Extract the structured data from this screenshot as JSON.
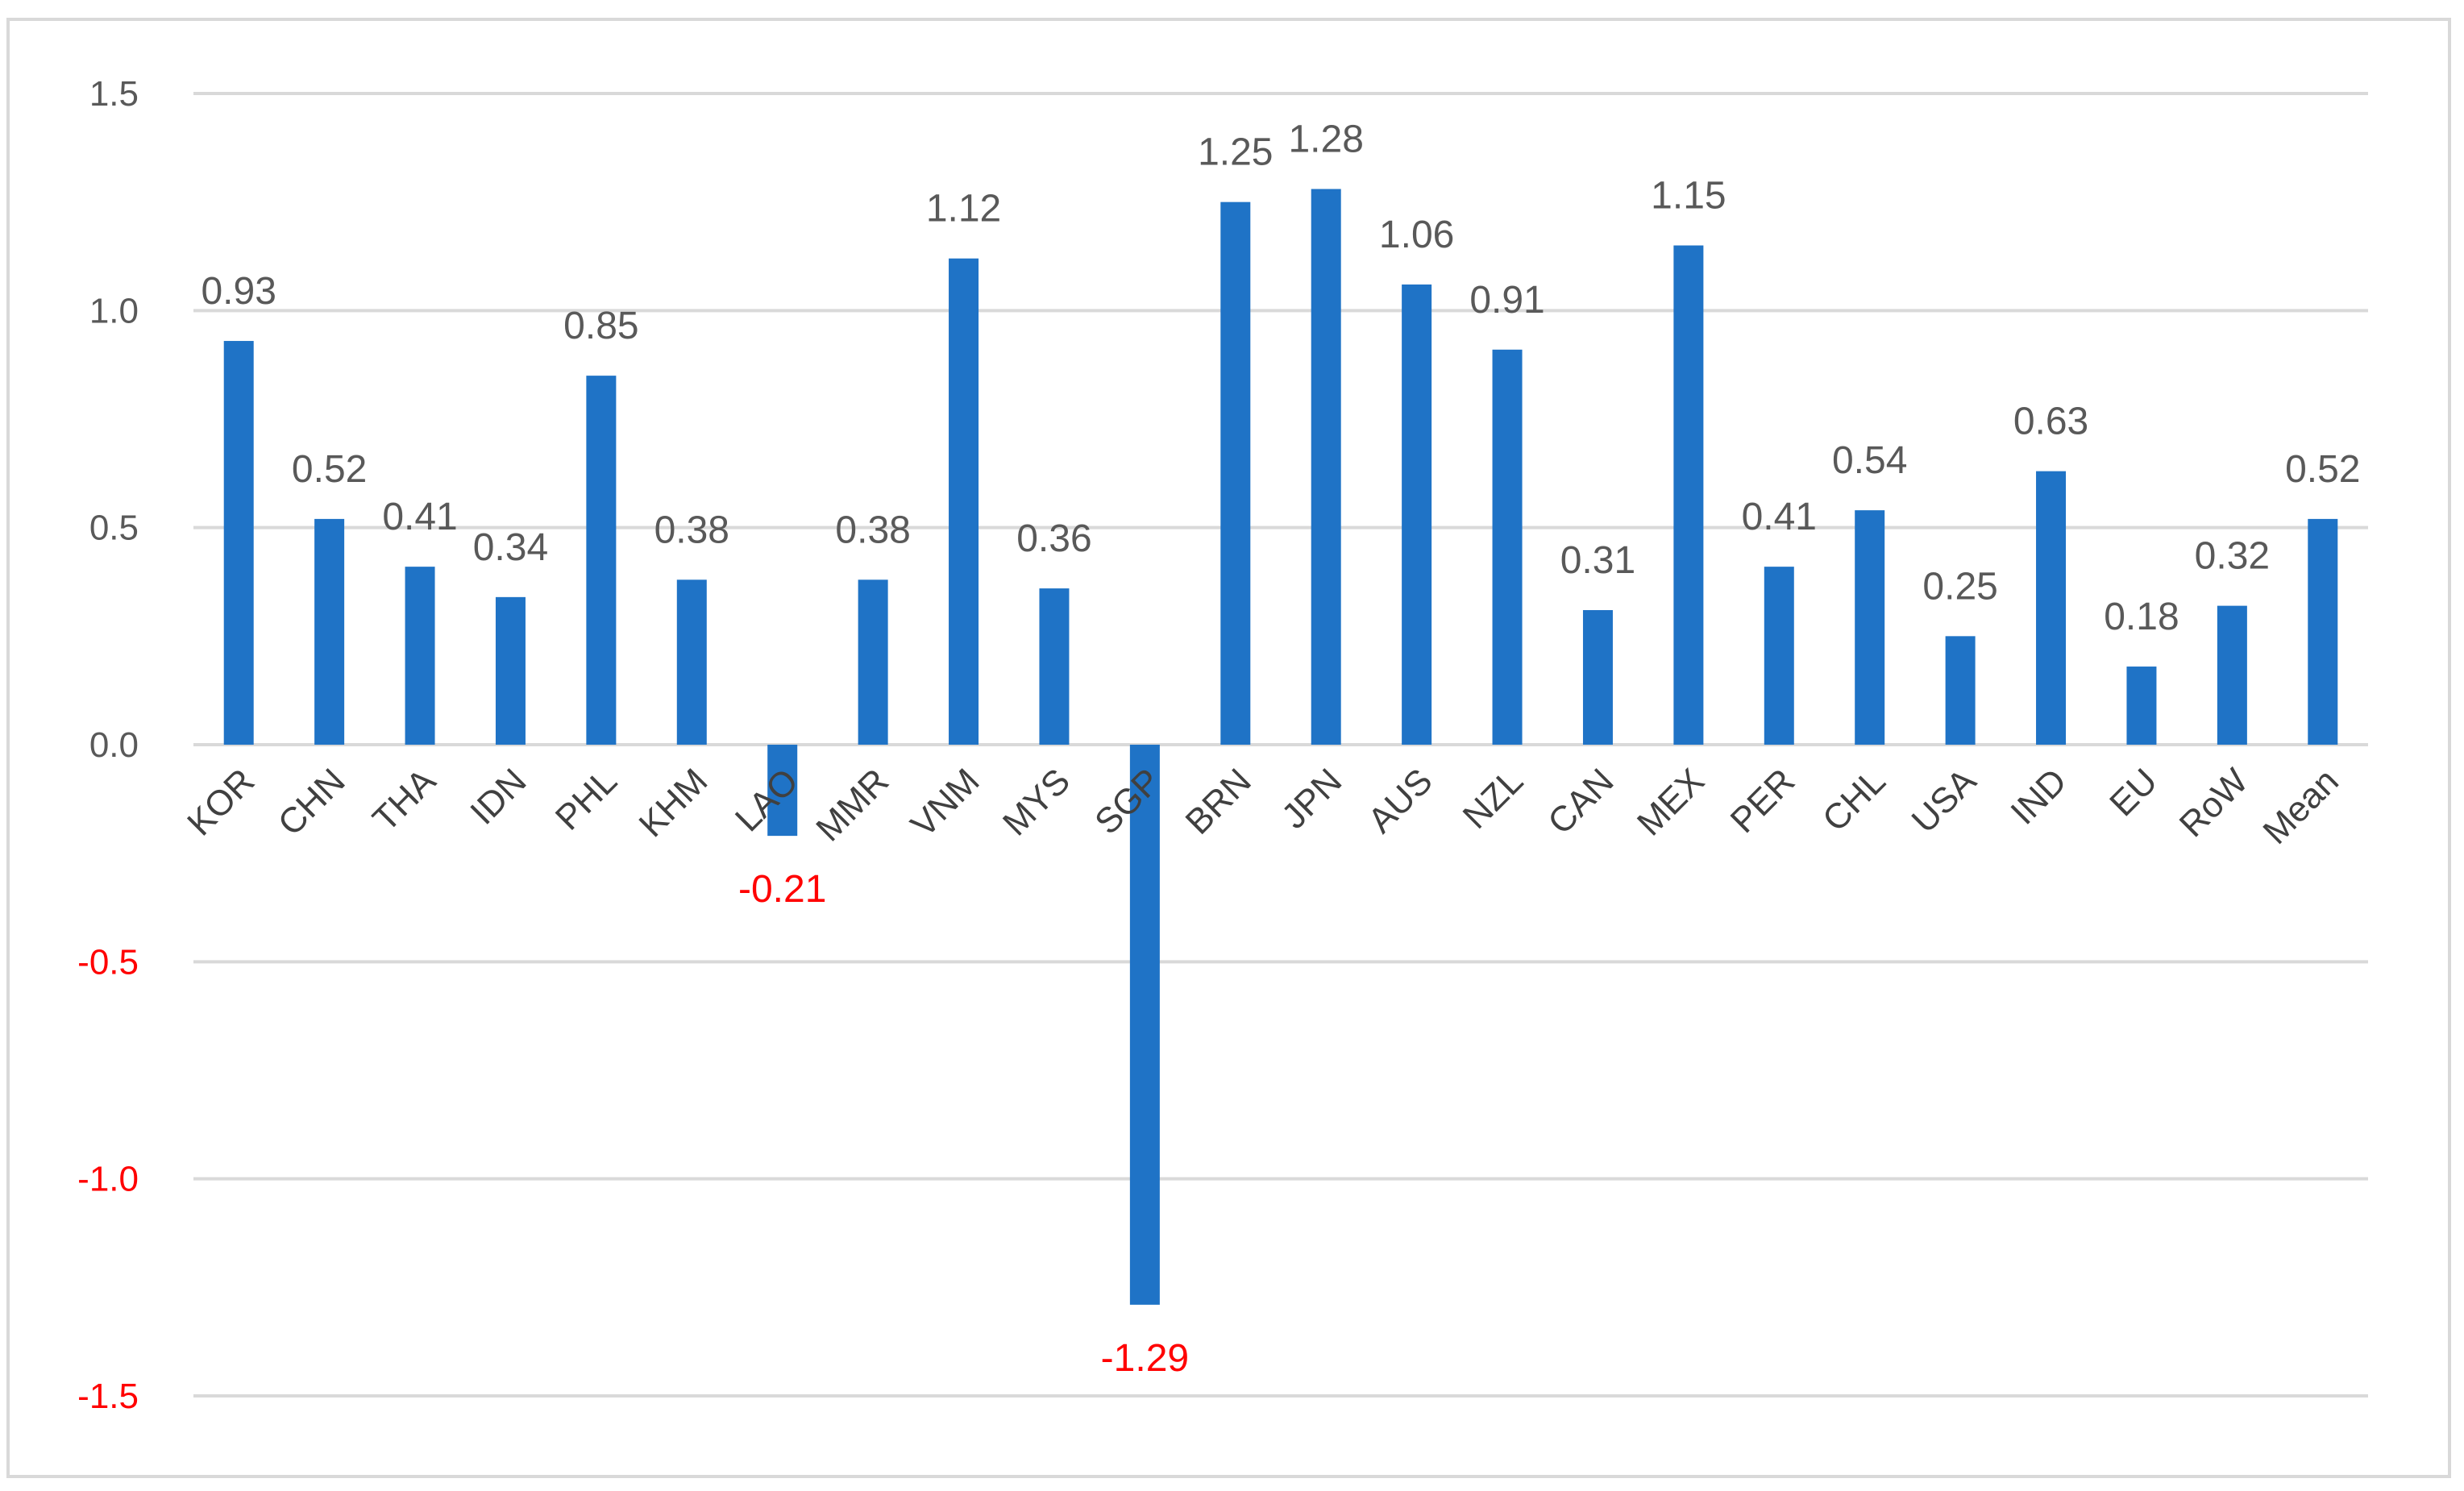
{
  "chart_data": {
    "type": "bar",
    "categories": [
      "KOR",
      "CHN",
      "THA",
      "IDN",
      "PHL",
      "KHM",
      "LAO",
      "MMR",
      "VNM",
      "MYS",
      "SGP",
      "BRN",
      "JPN",
      "AUS",
      "NZL",
      "CAN",
      "MEX",
      "PER",
      "CHL",
      "USA",
      "IND",
      "EU",
      "RoW",
      "Mean"
    ],
    "values": [
      0.93,
      0.52,
      0.41,
      0.34,
      0.85,
      0.38,
      -0.21,
      0.38,
      1.12,
      0.36,
      -1.29,
      1.25,
      1.28,
      1.06,
      0.91,
      0.31,
      1.15,
      0.41,
      0.54,
      0.25,
      0.63,
      0.18,
      0.32,
      0.52
    ],
    "data_labels": [
      "0.93",
      "0.52",
      "0.41",
      "0.34",
      "0.85",
      "0.38",
      "-0.21",
      "0.38",
      "1.12",
      "0.36",
      "-1.29",
      "1.25",
      "1.28",
      "1.06",
      "0.91",
      "0.31",
      "1.15",
      "0.41",
      "0.54",
      "0.25",
      "0.63",
      "0.18",
      "0.32",
      "0.52"
    ],
    "y_ticks": [
      1.5,
      1.0,
      0.5,
      0.0,
      -0.5,
      -1.0,
      -1.5
    ],
    "y_tick_labels": [
      "1.5",
      "1.0",
      "0.5",
      "0.0",
      "-0.5",
      "-1.0",
      "-1.5"
    ],
    "ylim": [
      -1.5,
      1.5
    ],
    "grid": true,
    "legend": "none",
    "title": "",
    "xlabel": "",
    "ylabel": "",
    "colors": {
      "bar": "#1f73c6",
      "positive_text": "#595959",
      "negative_text": "#ff0000",
      "grid": "#d9d9d9"
    }
  }
}
